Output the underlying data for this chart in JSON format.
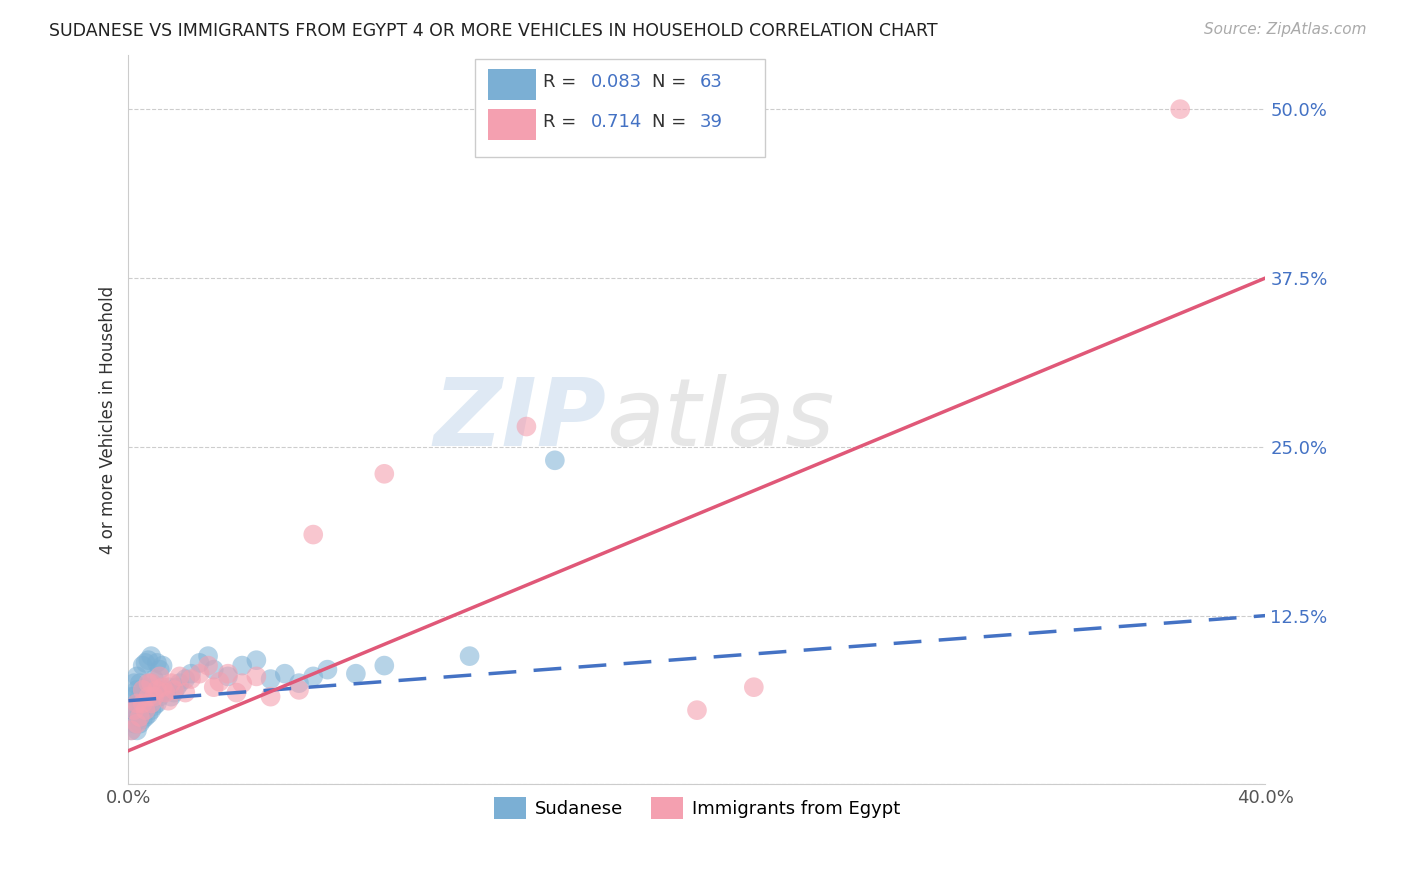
{
  "title": "SUDANESE VS IMMIGRANTS FROM EGYPT 4 OR MORE VEHICLES IN HOUSEHOLD CORRELATION CHART",
  "source": "Source: ZipAtlas.com",
  "ylabel": "4 or more Vehicles in Household",
  "xlim": [
    0.0,
    0.4
  ],
  "ylim": [
    0.0,
    0.54
  ],
  "xticks": [
    0.0,
    0.05,
    0.1,
    0.15,
    0.2,
    0.25,
    0.3,
    0.35,
    0.4
  ],
  "ytick_positions": [
    0.0,
    0.125,
    0.25,
    0.375,
    0.5
  ],
  "yticklabels_right": [
    "",
    "12.5%",
    "25.0%",
    "37.5%",
    "50.0%"
  ],
  "legend_label_blue": "Sudanese",
  "legend_label_pink": "Immigrants from Egypt",
  "watermark_zip": "ZIP",
  "watermark_atlas": "atlas",
  "blue_color": "#7bafd4",
  "pink_color": "#f4a0b0",
  "blue_line_color": "#4472c4",
  "pink_line_color": "#e05878",
  "grid_color": "#c8c8c8",
  "blue_scatter_x": [
    0.001,
    0.001,
    0.001,
    0.002,
    0.002,
    0.002,
    0.002,
    0.003,
    0.003,
    0.003,
    0.003,
    0.003,
    0.004,
    0.004,
    0.004,
    0.004,
    0.005,
    0.005,
    0.005,
    0.005,
    0.006,
    0.006,
    0.006,
    0.006,
    0.007,
    0.007,
    0.007,
    0.007,
    0.008,
    0.008,
    0.008,
    0.009,
    0.009,
    0.01,
    0.01,
    0.01,
    0.011,
    0.011,
    0.012,
    0.012,
    0.013,
    0.014,
    0.015,
    0.016,
    0.017,
    0.018,
    0.02,
    0.022,
    0.025,
    0.028,
    0.03,
    0.035,
    0.04,
    0.045,
    0.05,
    0.055,
    0.06,
    0.065,
    0.07,
    0.08,
    0.09,
    0.12,
    0.15
  ],
  "blue_scatter_y": [
    0.04,
    0.055,
    0.065,
    0.045,
    0.055,
    0.065,
    0.075,
    0.04,
    0.05,
    0.06,
    0.07,
    0.08,
    0.045,
    0.055,
    0.065,
    0.075,
    0.048,
    0.058,
    0.068,
    0.088,
    0.05,
    0.06,
    0.07,
    0.09,
    0.052,
    0.062,
    0.072,
    0.092,
    0.055,
    0.075,
    0.095,
    0.058,
    0.078,
    0.06,
    0.07,
    0.09,
    0.065,
    0.085,
    0.068,
    0.088,
    0.07,
    0.072,
    0.065,
    0.068,
    0.072,
    0.075,
    0.078,
    0.082,
    0.09,
    0.095,
    0.085,
    0.08,
    0.088,
    0.092,
    0.078,
    0.082,
    0.075,
    0.08,
    0.085,
    0.082,
    0.088,
    0.095,
    0.24
  ],
  "pink_scatter_x": [
    0.001,
    0.002,
    0.003,
    0.003,
    0.004,
    0.005,
    0.005,
    0.006,
    0.007,
    0.007,
    0.008,
    0.008,
    0.009,
    0.01,
    0.011,
    0.012,
    0.013,
    0.014,
    0.015,
    0.016,
    0.018,
    0.02,
    0.022,
    0.025,
    0.028,
    0.03,
    0.032,
    0.035,
    0.038,
    0.04,
    0.045,
    0.05,
    0.06,
    0.065,
    0.09,
    0.14,
    0.2,
    0.22,
    0.37
  ],
  "pink_scatter_y": [
    0.04,
    0.055,
    0.045,
    0.06,
    0.05,
    0.06,
    0.07,
    0.055,
    0.065,
    0.075,
    0.06,
    0.075,
    0.065,
    0.07,
    0.08,
    0.072,
    0.068,
    0.062,
    0.075,
    0.07,
    0.08,
    0.068,
    0.078,
    0.082,
    0.088,
    0.072,
    0.076,
    0.082,
    0.068,
    0.075,
    0.08,
    0.065,
    0.07,
    0.185,
    0.23,
    0.265,
    0.055,
    0.072,
    0.5
  ],
  "blue_line_x": [
    0.0,
    0.4
  ],
  "blue_line_y": [
    0.062,
    0.125
  ],
  "pink_line_x": [
    0.0,
    0.4
  ],
  "pink_line_y": [
    0.025,
    0.375
  ]
}
